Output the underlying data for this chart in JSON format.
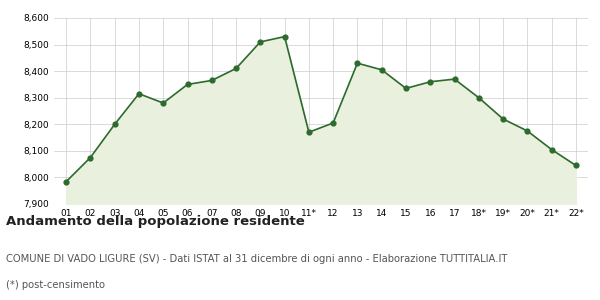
{
  "x_labels": [
    "01",
    "02",
    "03",
    "04",
    "05",
    "06",
    "07",
    "08",
    "09",
    "10",
    "11*",
    "12",
    "13",
    "14",
    "15",
    "16",
    "17",
    "18*",
    "19*",
    "20*",
    "21*",
    "22*"
  ],
  "y_values": [
    7984,
    8075,
    8200,
    8315,
    8280,
    8350,
    8365,
    8410,
    8510,
    8530,
    8170,
    8205,
    8430,
    8405,
    8335,
    8360,
    8370,
    8300,
    8220,
    8175,
    8105,
    8045
  ],
  "line_color": "#2d6a2d",
  "fill_color": "#eaf0de",
  "marker_color": "#2d6a2d",
  "bg_color": "#ffffff",
  "grid_color": "#cccccc",
  "ylim_min": 7900,
  "ylim_max": 8600,
  "yticks": [
    7900,
    8000,
    8100,
    8200,
    8300,
    8400,
    8500,
    8600
  ],
  "title": "Andamento della popolazione residente",
  "subtitle": "COMUNE DI VADO LIGURE (SV) - Dati ISTAT al 31 dicembre di ogni anno - Elaborazione TUTTITALIA.IT",
  "footnote": "(*) post-censimento",
  "title_fontsize": 9.5,
  "subtitle_fontsize": 7.2,
  "footnote_fontsize": 7.2,
  "tick_fontsize": 6.5
}
